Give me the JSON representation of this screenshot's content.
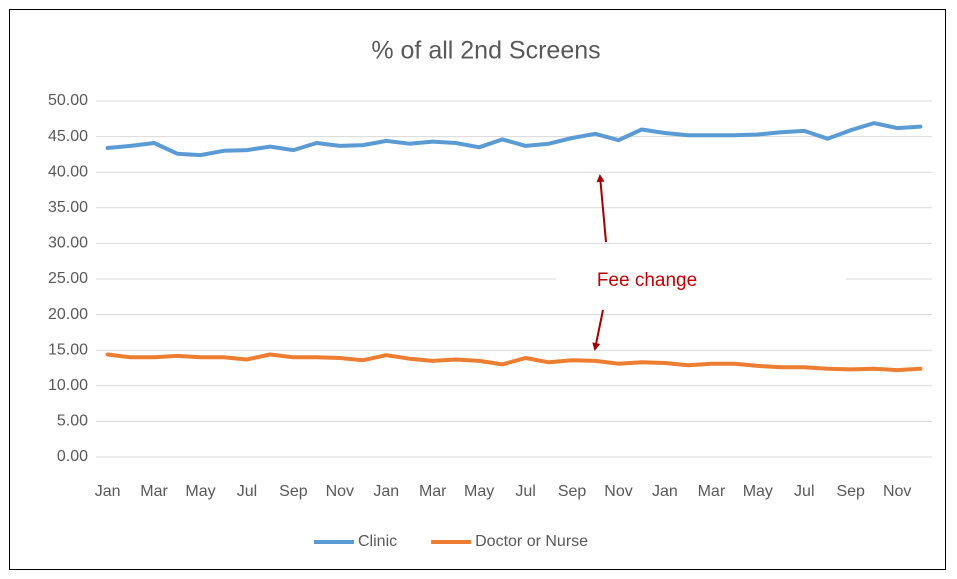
{
  "chart_data": {
    "type": "line",
    "title": "% of all 2nd Screens",
    "categories": [
      "Jan",
      null,
      "Mar",
      null,
      "May",
      null,
      "Jul",
      null,
      "Sep",
      null,
      "Nov",
      null,
      "Jan",
      null,
      "Mar",
      null,
      "May",
      null,
      "Jul",
      null,
      "Sep",
      null,
      "Nov",
      null,
      "Jan",
      null,
      "Mar",
      null,
      "May",
      null,
      "Jul",
      null,
      "Sep",
      null,
      "Nov",
      null
    ],
    "series": [
      {
        "name": "Clinic",
        "color": "#5b9bd5",
        "values": [
          43.4,
          43.7,
          44.1,
          42.6,
          42.4,
          43.0,
          43.1,
          43.6,
          43.1,
          44.1,
          43.7,
          43.8,
          44.4,
          44.0,
          44.3,
          44.1,
          43.5,
          44.6,
          43.7,
          44.0,
          44.8,
          45.4,
          44.5,
          46.0,
          45.5,
          45.2,
          45.2,
          45.2,
          45.3,
          45.6,
          45.8,
          44.7,
          45.9,
          46.9,
          46.2,
          46.4
        ]
      },
      {
        "name": "Doctor or Nurse",
        "color": "#ed7d31",
        "values": [
          14.4,
          14.0,
          14.0,
          14.2,
          14.0,
          14.0,
          13.7,
          14.4,
          14.0,
          14.0,
          13.9,
          13.6,
          14.3,
          13.8,
          13.5,
          13.7,
          13.5,
          13.0,
          13.9,
          13.3,
          13.6,
          13.5,
          13.1,
          13.3,
          13.2,
          12.9,
          13.1,
          13.1,
          12.8,
          12.6,
          12.6,
          12.4,
          12.3,
          12.4,
          12.2,
          12.4
        ]
      }
    ],
    "ylim": [
      0,
      50
    ],
    "yticks": [
      {
        "value": 0,
        "label": "0.00"
      },
      {
        "value": 5,
        "label": "5.00"
      },
      {
        "value": 10,
        "label": "10.00"
      },
      {
        "value": 15,
        "label": "15.00"
      },
      {
        "value": 20,
        "label": "20.00"
      },
      {
        "value": 25,
        "label": "25.00"
      },
      {
        "value": 30,
        "label": "30.00"
      },
      {
        "value": 35,
        "label": "35.00"
      },
      {
        "value": 40,
        "label": "40.00"
      },
      {
        "value": 45,
        "label": "45.00"
      },
      {
        "value": 50,
        "label": "50.00"
      }
    ],
    "grid": true,
    "legend": "bottom",
    "annotation": "Fee change"
  }
}
